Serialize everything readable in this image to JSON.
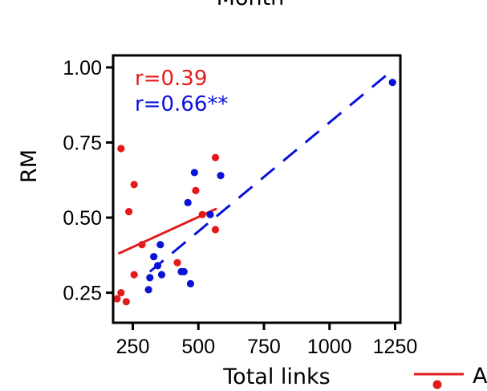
{
  "chart_data": {
    "type": "scatter",
    "title": "Month",
    "xlabel": "Total links",
    "ylabel": "RM",
    "xlim": [
      175,
      1270
    ],
    "ylim": [
      0.15,
      1.04
    ],
    "xticks": [
      250,
      500,
      750,
      1000,
      1250
    ],
    "xtick_labels": [
      "250",
      "500",
      "750",
      "1000",
      "1250"
    ],
    "yticks": [
      0.25,
      0.5,
      0.75,
      1.0
    ],
    "ytick_labels": [
      "0.25",
      "0.50",
      "0.75",
      "1.00"
    ],
    "grid": false,
    "legend": {
      "placement": "bottom-right",
      "entries": [
        "A"
      ]
    },
    "annotations": [
      {
        "text": "r=0.39",
        "color": "#e31a1c"
      },
      {
        "text": "r=0.66**",
        "color": "#0a12d6"
      }
    ],
    "series": [
      {
        "name": "A",
        "color": "#e31a1c",
        "line_style": "solid",
        "points": [
          [
            190,
            0.23
          ],
          [
            205,
            0.25
          ],
          [
            205,
            0.73
          ],
          [
            225,
            0.22
          ],
          [
            235,
            0.52
          ],
          [
            255,
            0.61
          ],
          [
            255,
            0.31
          ],
          [
            285,
            0.41
          ],
          [
            420,
            0.35
          ],
          [
            490,
            0.59
          ],
          [
            515,
            0.51
          ],
          [
            565,
            0.7
          ],
          [
            565,
            0.46
          ]
        ],
        "fit": [
          [
            195,
            0.38
          ],
          [
            570,
            0.53
          ]
        ]
      },
      {
        "color": "#0a12d6",
        "line_style": "dashed",
        "points": [
          [
            310,
            0.26
          ],
          [
            315,
            0.3
          ],
          [
            330,
            0.37
          ],
          [
            345,
            0.34
          ],
          [
            355,
            0.41
          ],
          [
            360,
            0.31
          ],
          [
            435,
            0.32
          ],
          [
            445,
            0.32
          ],
          [
            460,
            0.55
          ],
          [
            470,
            0.28
          ],
          [
            485,
            0.65
          ],
          [
            545,
            0.51
          ],
          [
            585,
            0.64
          ],
          [
            1240,
            0.95
          ]
        ],
        "fit": [
          [
            315,
            0.32
          ],
          [
            1225,
            0.98
          ]
        ]
      }
    ]
  }
}
